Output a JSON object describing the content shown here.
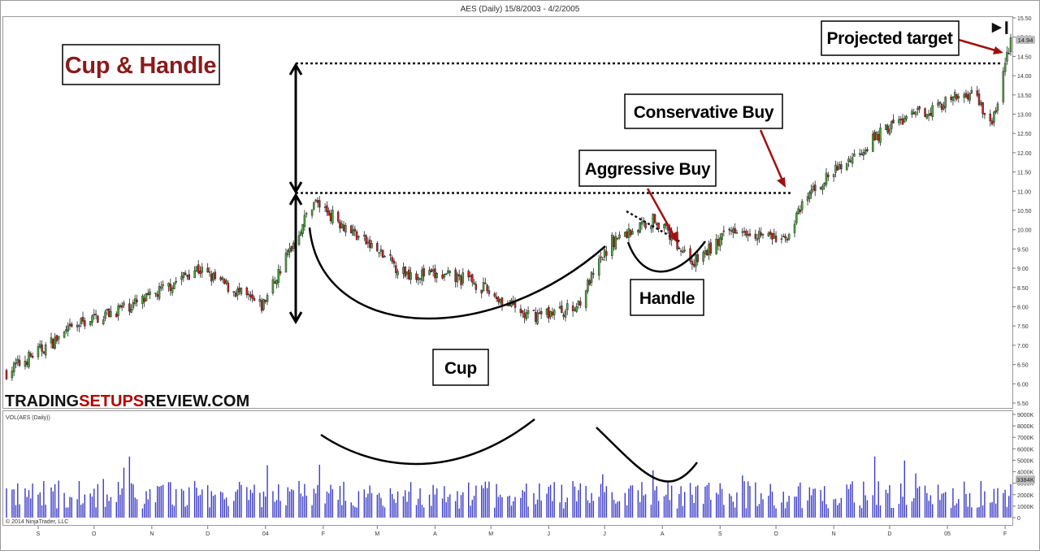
{
  "window": {
    "title": "AES (Daily)  15/8/2003 - 4/2/2005",
    "copyright": "© 2014 NinjaTrader, LLC",
    "play_button": "▶❙"
  },
  "logo": {
    "part1": "TRADING",
    "part2": "SETUPS",
    "part3": "REVIEW.COM",
    "accent": "#b40000"
  },
  "annotations": {
    "title": "Cup & Handle",
    "cup": "Cup",
    "handle": "Handle",
    "aggressive": "Aggressive Buy",
    "conservative": "Conservative Buy",
    "target": "Projected target"
  },
  "colors": {
    "up": "#4caf3a",
    "down": "#d42020",
    "volume": "#3b3bc8",
    "annotation_title": "#8b1a1a",
    "arrow": "#a01010"
  },
  "chart_data": [
    {
      "type": "candlestick",
      "title": "AES (Daily)  15/8/2003 - 4/2/2005",
      "ylim": [
        5.5,
        15.5
      ],
      "y_ticks": [
        "15.50",
        "15.00",
        "14.50",
        "14.00",
        "13.50",
        "13.00",
        "12.50",
        "12.00",
        "11.50",
        "11.00",
        "10.50",
        "10.00",
        "9.50",
        "9.00",
        "8.50",
        "8.00",
        "7.50",
        "7.00",
        "6.50",
        "6.00",
        "5.50"
      ],
      "last_price": "14.94",
      "x_ticks": [
        "S",
        "O",
        "N",
        "D",
        "04",
        "F",
        "M",
        "A",
        "M",
        "J",
        "J",
        "A",
        "S",
        "O",
        "N",
        "D",
        "05",
        "F"
      ],
      "key_points": [
        {
          "date": "2003-08-15",
          "close": 6.3
        },
        {
          "date": "2003-09-25",
          "close": 7.6
        },
        {
          "date": "2003-10-30",
          "close": 8.2
        },
        {
          "date": "2003-11-25",
          "close": 9.0
        },
        {
          "date": "2003-12-30",
          "close": 8.0
        },
        {
          "date": "2004-01-27",
          "close": 10.75
        },
        {
          "date": "2004-03-15",
          "close": 8.9
        },
        {
          "date": "2004-04-20",
          "close": 8.7
        },
        {
          "date": "2004-05-20",
          "close": 7.75
        },
        {
          "date": "2004-06-15",
          "close": 7.95
        },
        {
          "date": "2004-07-05",
          "close": 9.7
        },
        {
          "date": "2004-07-28",
          "close": 10.3
        },
        {
          "date": "2004-08-18",
          "close": 9.15
        },
        {
          "date": "2004-09-10",
          "close": 10.1
        },
        {
          "date": "2004-10-05",
          "close": 9.7
        },
        {
          "date": "2004-10-20",
          "close": 11.0
        },
        {
          "date": "2004-12-01",
          "close": 12.7
        },
        {
          "date": "2005-01-15",
          "close": 13.6
        },
        {
          "date": "2005-01-25",
          "close": 12.7
        },
        {
          "date": "2005-02-04",
          "close": 14.94
        }
      ],
      "resistance_level": 11.0,
      "target_level": 14.3
    },
    {
      "type": "bar",
      "title": "VOL(AES (Daily))",
      "ylim": [
        0,
        9000
      ],
      "y_ticks": [
        "9000K",
        "8000K",
        "7000K",
        "6000K",
        "5000K",
        "4000K",
        "3000K",
        "2000K",
        "1000K",
        "0"
      ],
      "last_value": "3384K"
    }
  ]
}
